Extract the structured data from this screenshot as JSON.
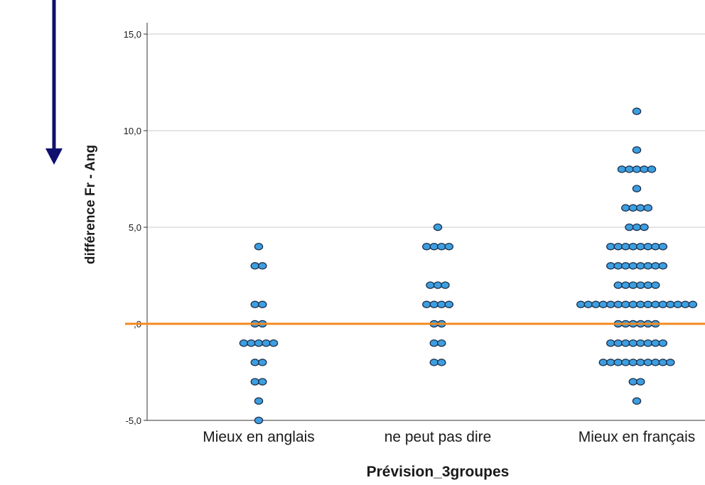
{
  "chart_data": {
    "type": "scatter",
    "subtype": "dot-plot",
    "xlabel": "Prévision_3groupes",
    "ylabel": "différence Fr - Ang",
    "categories": [
      "Mieux en anglais",
      "ne peut pas dire",
      "Mieux en français"
    ],
    "ylim": [
      -5,
      15
    ],
    "yticks": [
      -5,
      0,
      5,
      10,
      15
    ],
    "ytick_labels": [
      "-5,0",
      ",0",
      "5,0",
      "10,0",
      "15,0"
    ],
    "grid": true,
    "reference_line": {
      "y": 0,
      "color": "#f28a1e"
    },
    "dot_color": "#3d9ee0",
    "dot_outline": "#1b2f4a",
    "arrow_color": "#10106e",
    "dot_counts": [
      {
        "category": "Mieux en anglais",
        "y": 4,
        "count": 1
      },
      {
        "category": "Mieux en anglais",
        "y": 3,
        "count": 2
      },
      {
        "category": "Mieux en anglais",
        "y": 1,
        "count": 2
      },
      {
        "category": "Mieux en anglais",
        "y": 0,
        "count": 2
      },
      {
        "category": "Mieux en anglais",
        "y": -1,
        "count": 5
      },
      {
        "category": "Mieux en anglais",
        "y": -2,
        "count": 2
      },
      {
        "category": "Mieux en anglais",
        "y": -3,
        "count": 2
      },
      {
        "category": "Mieux en anglais",
        "y": -4,
        "count": 1
      },
      {
        "category": "Mieux en anglais",
        "y": -5,
        "count": 1
      },
      {
        "category": "ne peut pas dire",
        "y": 5,
        "count": 1
      },
      {
        "category": "ne peut pas dire",
        "y": 4,
        "count": 4
      },
      {
        "category": "ne peut pas dire",
        "y": 2,
        "count": 3
      },
      {
        "category": "ne peut pas dire",
        "y": 1,
        "count": 4
      },
      {
        "category": "ne peut pas dire",
        "y": 0,
        "count": 2
      },
      {
        "category": "ne peut pas dire",
        "y": -1,
        "count": 2
      },
      {
        "category": "ne peut pas dire",
        "y": -2,
        "count": 2
      },
      {
        "category": "Mieux en français",
        "y": 11,
        "count": 1
      },
      {
        "category": "Mieux en français",
        "y": 9,
        "count": 1
      },
      {
        "category": "Mieux en français",
        "y": 8,
        "count": 5
      },
      {
        "category": "Mieux en français",
        "y": 7,
        "count": 1
      },
      {
        "category": "Mieux en français",
        "y": 6,
        "count": 4
      },
      {
        "category": "Mieux en français",
        "y": 5,
        "count": 3
      },
      {
        "category": "Mieux en français",
        "y": 4,
        "count": 8
      },
      {
        "category": "Mieux en français",
        "y": 3,
        "count": 8
      },
      {
        "category": "Mieux en français",
        "y": 2,
        "count": 6
      },
      {
        "category": "Mieux en français",
        "y": 1,
        "count": 16
      },
      {
        "category": "Mieux en français",
        "y": 0,
        "count": 6
      },
      {
        "category": "Mieux en français",
        "y": -1,
        "count": 8
      },
      {
        "category": "Mieux en français",
        "y": -2,
        "count": 10
      },
      {
        "category": "Mieux en français",
        "y": -3,
        "count": 2
      },
      {
        "category": "Mieux en français",
        "y": -4,
        "count": 1
      }
    ]
  }
}
